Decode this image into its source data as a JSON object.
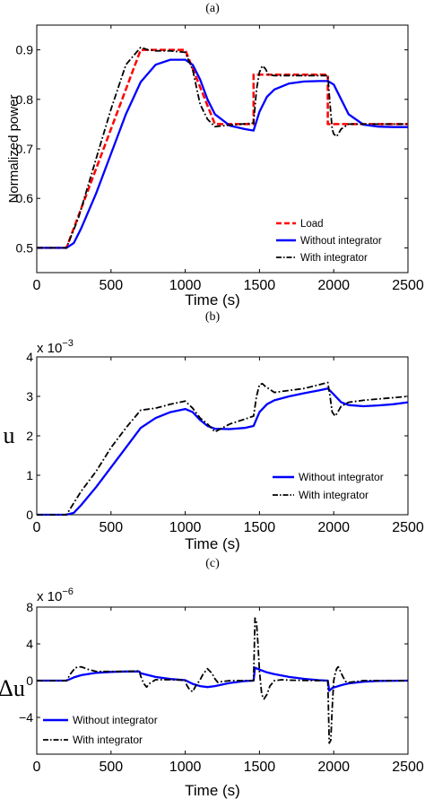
{
  "chart_data": [
    {
      "type": "line",
      "panel_label": "(a)",
      "xlabel": "Time (s)",
      "ylabel": "Normalized power",
      "xlim": [
        0,
        2500
      ],
      "ylim": [
        0.45,
        0.95
      ],
      "xticks": [
        "0",
        "500",
        "1000",
        "1500",
        "2000",
        "2500"
      ],
      "yticks": [
        "0.5",
        "0.6",
        "0.7",
        "0.8",
        "0.9"
      ],
      "legend_position": "bottom-right",
      "series": [
        {
          "name": "Load",
          "color": "#ff0000",
          "style": "dashed",
          "x": [
            0,
            200,
            700,
            1000,
            1200,
            1460,
            1460,
            1960,
            1960,
            2500
          ],
          "y": [
            0.5,
            0.5,
            0.9,
            0.9,
            0.75,
            0.75,
            0.85,
            0.85,
            0.75,
            0.75
          ]
        },
        {
          "name": "Without integrator",
          "color": "#0000ff",
          "style": "solid",
          "x": [
            0,
            200,
            250,
            300,
            400,
            500,
            600,
            700,
            800,
            900,
            1000,
            1050,
            1100,
            1150,
            1200,
            1300,
            1400,
            1460,
            1500,
            1550,
            1600,
            1700,
            1800,
            1900,
            1960,
            2000,
            2050,
            2100,
            2200,
            2300,
            2400,
            2500
          ],
          "y": [
            0.5,
            0.5,
            0.51,
            0.54,
            0.61,
            0.69,
            0.77,
            0.835,
            0.87,
            0.88,
            0.88,
            0.87,
            0.84,
            0.8,
            0.77,
            0.747,
            0.74,
            0.737,
            0.775,
            0.805,
            0.82,
            0.832,
            0.836,
            0.837,
            0.837,
            0.83,
            0.8,
            0.77,
            0.749,
            0.745,
            0.744,
            0.744
          ]
        },
        {
          "name": "With integrator",
          "color": "#000000",
          "style": "dashdot",
          "x": [
            0,
            200,
            280,
            400,
            500,
            600,
            700,
            750,
            800,
            900,
            1000,
            1050,
            1100,
            1150,
            1200,
            1300,
            1460,
            1480,
            1500,
            1520,
            1540,
            1560,
            1600,
            1700,
            1960,
            1975,
            1990,
            2000,
            2020,
            2050,
            2100,
            2200,
            2500
          ],
          "y": [
            0.5,
            0.5,
            0.56,
            0.68,
            0.78,
            0.87,
            0.905,
            0.9,
            0.898,
            0.898,
            0.895,
            0.86,
            0.79,
            0.76,
            0.745,
            0.748,
            0.752,
            0.82,
            0.855,
            0.868,
            0.862,
            0.85,
            0.848,
            0.848,
            0.848,
            0.79,
            0.74,
            0.73,
            0.725,
            0.74,
            0.75,
            0.75,
            0.75
          ]
        }
      ]
    },
    {
      "type": "line",
      "panel_label": "(b)",
      "xlabel": "Time (s)",
      "ylabel": "u",
      "exponent_label": "x 10",
      "exponent_power": "−3",
      "xlim": [
        0,
        2500
      ],
      "ylim": [
        0,
        4
      ],
      "xticks": [
        "0",
        "500",
        "1000",
        "1500",
        "2000",
        "2500"
      ],
      "yticks": [
        "0",
        "1",
        "2",
        "3",
        "4"
      ],
      "legend_position": "bottom-right",
      "series": [
        {
          "name": "Without integrator",
          "color": "#0000ff",
          "style": "solid",
          "x": [
            0,
            200,
            250,
            300,
            400,
            500,
            600,
            700,
            800,
            900,
            1000,
            1050,
            1100,
            1150,
            1200,
            1300,
            1400,
            1460,
            1500,
            1550,
            1600,
            1700,
            1800,
            1900,
            1960,
            2000,
            2050,
            2100,
            2200,
            2300,
            2400,
            2500
          ],
          "y": [
            0,
            0,
            0.05,
            0.25,
            0.7,
            1.2,
            1.7,
            2.2,
            2.45,
            2.6,
            2.68,
            2.6,
            2.4,
            2.25,
            2.18,
            2.17,
            2.2,
            2.25,
            2.6,
            2.8,
            2.9,
            3.0,
            3.08,
            3.15,
            3.2,
            3.05,
            2.85,
            2.78,
            2.75,
            2.77,
            2.8,
            2.85
          ]
        },
        {
          "name": "With integrator",
          "color": "#000000",
          "style": "dashdot",
          "x": [
            0,
            200,
            300,
            400,
            500,
            600,
            700,
            800,
            900,
            1000,
            1050,
            1100,
            1150,
            1200,
            1300,
            1400,
            1460,
            1480,
            1500,
            1520,
            1540,
            1600,
            1700,
            1800,
            1960,
            1975,
            1990,
            2010,
            2030,
            2050,
            2100,
            2200,
            2500
          ],
          "y": [
            0,
            0,
            0.6,
            1.1,
            1.7,
            2.2,
            2.65,
            2.7,
            2.8,
            2.88,
            2.7,
            2.45,
            2.3,
            2.1,
            2.3,
            2.42,
            2.5,
            3.0,
            3.3,
            3.32,
            3.25,
            3.1,
            3.15,
            3.2,
            3.35,
            3.0,
            2.6,
            2.5,
            2.62,
            2.75,
            2.85,
            2.9,
            3.0
          ]
        }
      ]
    },
    {
      "type": "line",
      "panel_label": "(c)",
      "xlabel": "Time (s)",
      "ylabel": "Δu",
      "exponent_label": "x 10",
      "exponent_power": "−6",
      "xlim": [
        0,
        2500
      ],
      "ylim": [
        -8,
        8
      ],
      "xticks": [
        "0",
        "500",
        "1000",
        "1500",
        "2000",
        "2500"
      ],
      "yticks": [
        "−4",
        "0",
        "4",
        "8"
      ],
      "legend_position": "bottom-left",
      "series": [
        {
          "name": "Without integrator",
          "color": "#0000ff",
          "style": "solid",
          "x": [
            0,
            200,
            250,
            300,
            400,
            500,
            600,
            690,
            700,
            800,
            900,
            1000,
            1050,
            1100,
            1150,
            1200,
            1300,
            1400,
            1460,
            1470,
            1500,
            1550,
            1600,
            1700,
            1800,
            1900,
            1960,
            1970,
            1990,
            2050,
            2100,
            2200,
            2300,
            2500
          ],
          "y": [
            0,
            0,
            0.35,
            0.6,
            0.85,
            0.95,
            1.0,
            1.0,
            0.8,
            0.4,
            0.18,
            0.05,
            -0.35,
            -0.6,
            -0.7,
            -0.6,
            -0.25,
            -0.05,
            0,
            1.4,
            1.2,
            0.9,
            0.7,
            0.4,
            0.2,
            0.05,
            0,
            -1.1,
            -0.8,
            -0.5,
            -0.3,
            -0.12,
            -0.04,
            0
          ]
        },
        {
          "name": "With integrator",
          "color": "#000000",
          "style": "dashdot",
          "x": [
            0,
            200,
            230,
            260,
            300,
            350,
            400,
            500,
            600,
            690,
            700,
            720,
            740,
            760,
            800,
            900,
            1000,
            1010,
            1030,
            1050,
            1070,
            1100,
            1120,
            1150,
            1180,
            1200,
            1220,
            1250,
            1300,
            1400,
            1460,
            1470,
            1480,
            1490,
            1500,
            1515,
            1530,
            1550,
            1570,
            1600,
            1650,
            1700,
            1900,
            1960,
            1970,
            1980,
            1990,
            2000,
            2010,
            2020,
            2030,
            2040,
            2060,
            2080,
            2100,
            2150,
            2200,
            2500
          ],
          "y": [
            0,
            0,
            0.8,
            1.4,
            1.5,
            1.2,
            1.0,
            1.0,
            1.0,
            1.05,
            0.5,
            -0.3,
            -0.7,
            -0.3,
            0.1,
            0.1,
            0.05,
            -0.5,
            -1.0,
            -1.2,
            -0.6,
            0.1,
            0.7,
            1.3,
            0.8,
            0.2,
            -0.2,
            -0.1,
            0,
            0,
            0,
            6.8,
            6.3,
            4.0,
            1.0,
            -1.5,
            -2.0,
            -1.5,
            -0.6,
            0,
            0.1,
            0.05,
            0,
            0,
            -6.8,
            -6.5,
            -3.0,
            0,
            0.8,
            1.3,
            1.5,
            1.2,
            0.5,
            -0.1,
            -0.2,
            -0.1,
            0,
            0
          ]
        }
      ]
    }
  ]
}
